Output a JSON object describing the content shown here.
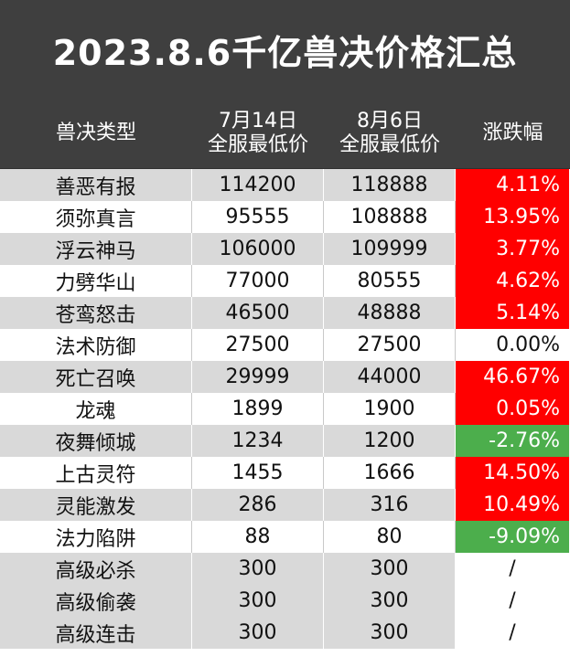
{
  "title": "2023.8.6千亿兽决价格汇总",
  "headers": {
    "type": "兽决类型",
    "jul_line1": "7月14日",
    "jul_line2": "全服最低价",
    "aug_line1": "8月6日",
    "aug_line2": "全服最低价",
    "change": "涨跌幅"
  },
  "rows": [
    {
      "name": "善恶有报",
      "jul": "114200",
      "aug": "118888",
      "change": "4.11%"
    },
    {
      "name": "须弥真言",
      "jul": "95555",
      "aug": "108888",
      "change": "13.95%"
    },
    {
      "name": "浮云神马",
      "jul": "106000",
      "aug": "109999",
      "change": "3.77%"
    },
    {
      "name": "力劈华山",
      "jul": "77000",
      "aug": "80555",
      "change": "4.62%"
    },
    {
      "name": "苍鸾怒击",
      "jul": "46500",
      "aug": "48888",
      "change": "5.14%"
    },
    {
      "name": "法术防御",
      "jul": "27500",
      "aug": "27500",
      "change": "0.00%"
    },
    {
      "name": "死亡召唤",
      "jul": "29999",
      "aug": "44000",
      "change": "46.67%"
    },
    {
      "name": "龙魂",
      "jul": "1899",
      "aug": "1900",
      "change": "0.05%"
    },
    {
      "name": "夜舞倾城",
      "jul": "1234",
      "aug": "1200",
      "change": "-2.76%"
    },
    {
      "name": "上古灵符",
      "jul": "1455",
      "aug": "1666",
      "change": "14.50%"
    },
    {
      "name": "灵能激发",
      "jul": "286",
      "aug": "316",
      "change": "10.49%"
    },
    {
      "name": "法力陷阱",
      "jul": "88",
      "aug": "80",
      "change": "-9.09%"
    },
    {
      "name": "高级必杀",
      "jul": "300",
      "aug": "300",
      "change": "/"
    },
    {
      "name": "高级偷袭",
      "jul": "300",
      "aug": "300",
      "change": "/"
    },
    {
      "name": "高级连击",
      "jul": "300",
      "aug": "300",
      "change": "/"
    }
  ]
}
